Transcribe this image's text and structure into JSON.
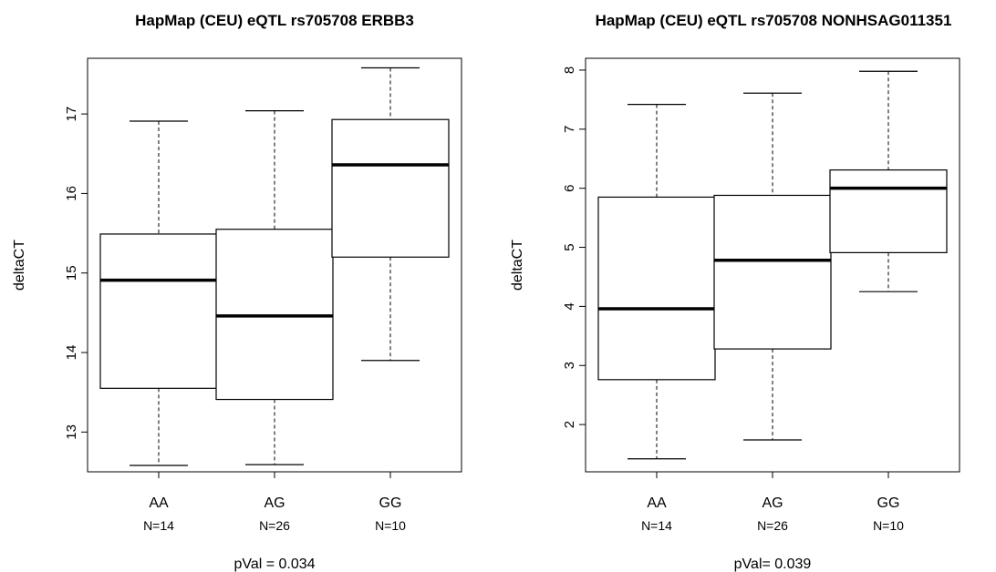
{
  "chart_data": [
    {
      "type": "box",
      "title": "HapMap (CEU) eQTL rs705708 ERBB3",
      "ylabel": "deltaCT",
      "ylim": [
        12.5,
        17.7
      ],
      "yticks": [
        "13",
        "14",
        "15",
        "16",
        "17"
      ],
      "categories": [
        "AA",
        "AG",
        "GG"
      ],
      "counts": [
        "N=14",
        "N=26",
        "N=10"
      ],
      "footer": "pVal = 0.034",
      "boxes": [
        {
          "min": 12.58,
          "q1": 13.55,
          "median": 14.91,
          "q3": 15.49,
          "max": 16.91
        },
        {
          "min": 12.59,
          "q1": 13.41,
          "median": 14.46,
          "q3": 15.55,
          "max": 17.04
        },
        {
          "min": 13.9,
          "q1": 15.2,
          "median": 16.36,
          "q3": 16.93,
          "max": 17.58
        }
      ]
    },
    {
      "type": "box",
      "title": "HapMap (CEU) eQTL rs705708 NONHSAG011351",
      "ylabel": "deltaCT",
      "ylim": [
        1.2,
        8.2
      ],
      "yticks": [
        "2",
        "3",
        "4",
        "5",
        "6",
        "7",
        "8"
      ],
      "categories": [
        "AA",
        "AG",
        "GG"
      ],
      "counts": [
        "N=14",
        "N=26",
        "N=10"
      ],
      "footer": "pVal= 0.039",
      "boxes": [
        {
          "min": 1.42,
          "q1": 2.76,
          "median": 3.96,
          "q3": 5.85,
          "max": 7.42
        },
        {
          "min": 1.74,
          "q1": 3.28,
          "median": 4.78,
          "q3": 5.88,
          "max": 7.61
        },
        {
          "min": 4.25,
          "q1": 4.91,
          "median": 6.0,
          "q3": 6.31,
          "max": 7.98
        }
      ]
    }
  ]
}
